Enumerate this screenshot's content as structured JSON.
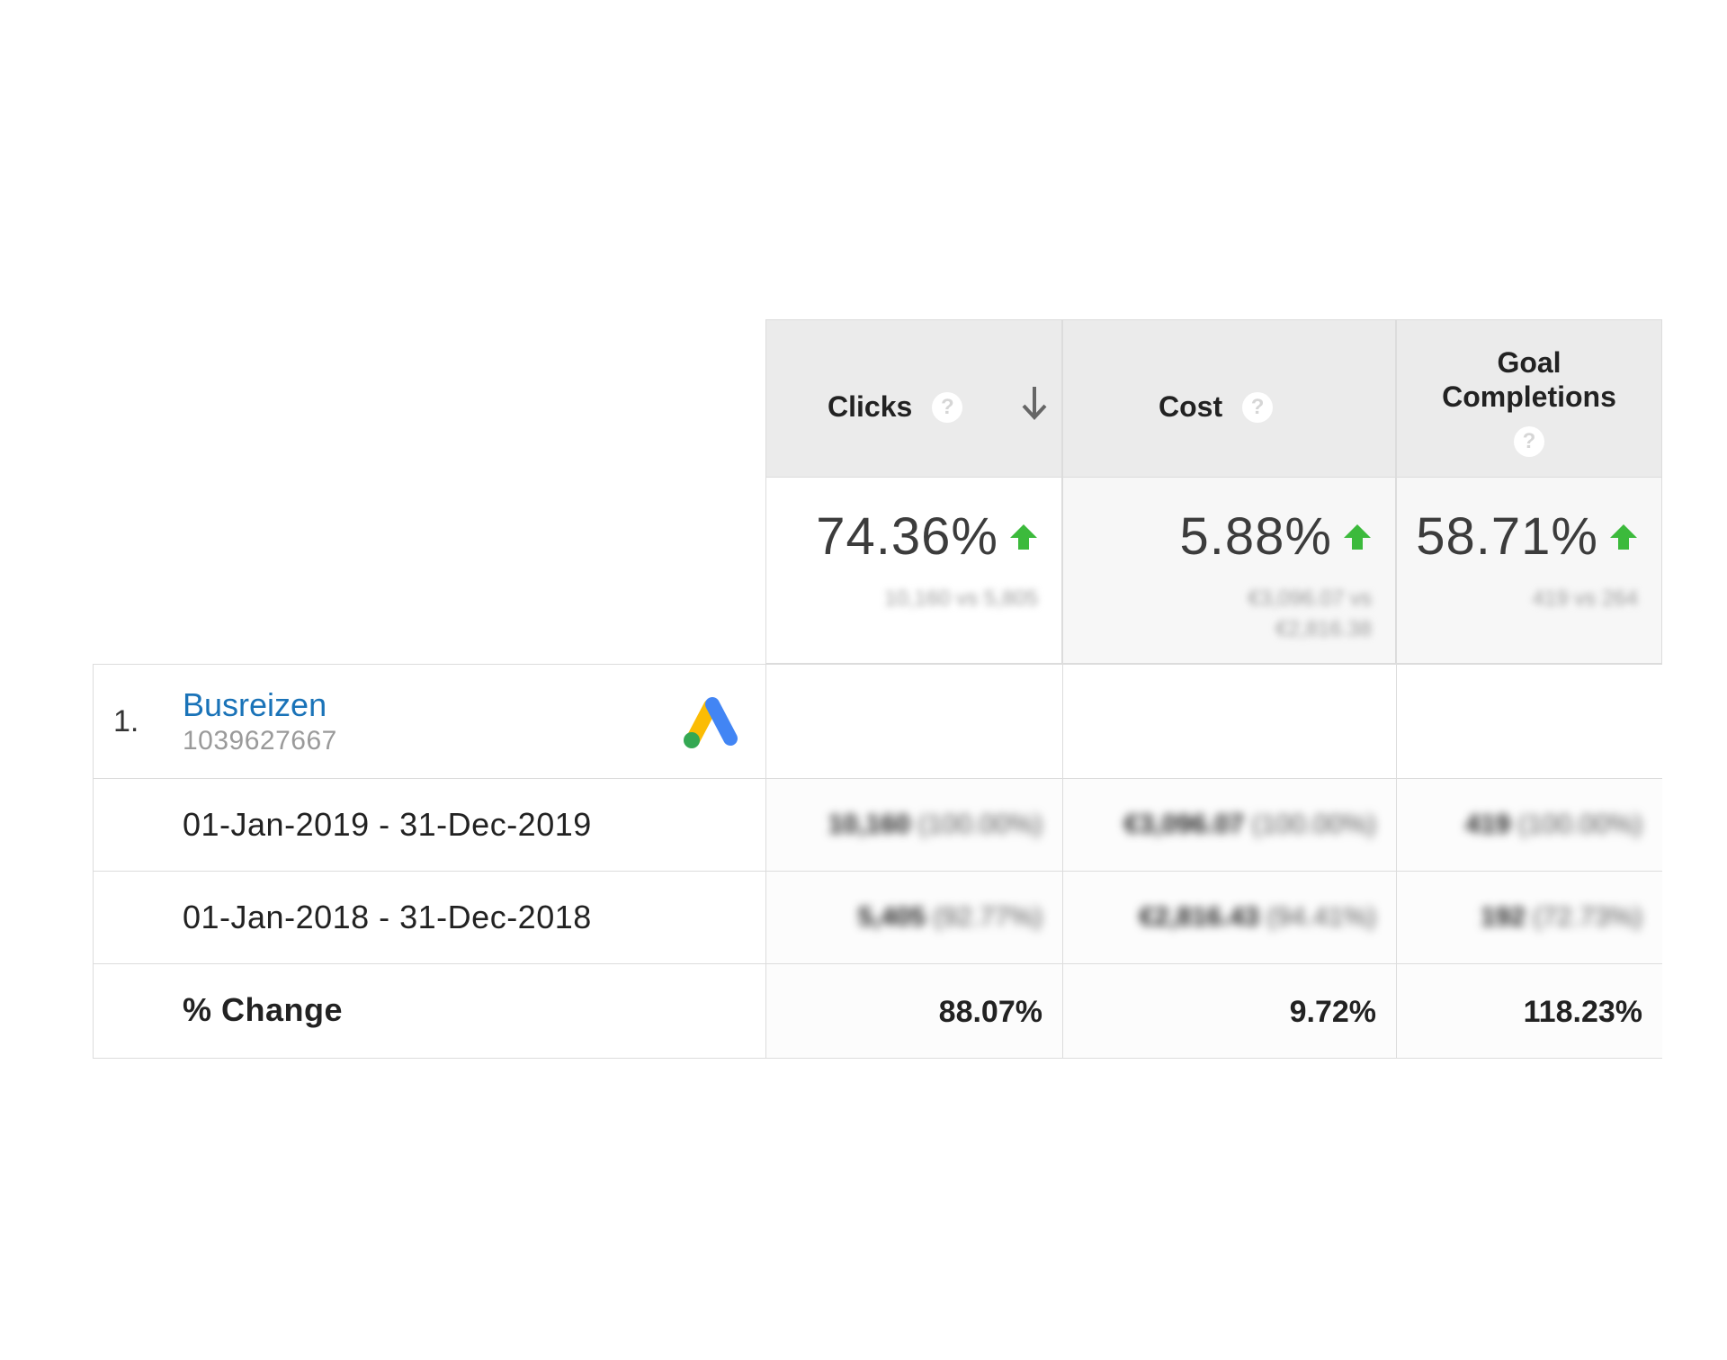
{
  "header": {
    "clicks_label": "Clicks",
    "cost_label": "Cost",
    "goal_label_line1": "Goal",
    "goal_label_line2": "Completions",
    "help_glyph": "?"
  },
  "summary": {
    "clicks_pct": "74.36%",
    "cost_pct": "5.88%",
    "goal_pct": "58.71%",
    "clicks_detail": "10,160 vs 5,805",
    "cost_detail_line1": "€3,096.07 vs",
    "cost_detail_line2": "€2,816.38",
    "goal_detail": "419 vs 264",
    "up_color": "#3cba3c"
  },
  "rows": {
    "campaign": {
      "index": "1.",
      "name": "Busreizen",
      "id": "1039627667"
    },
    "period_2019": {
      "label": "01-Jan-2019 - 31-Dec-2019",
      "clicks": "10,160",
      "clicks_share": "(100.00%)",
      "cost": "€3,096.07",
      "cost_share": "(100.00%)",
      "goal": "419",
      "goal_share": "(100.00%)"
    },
    "period_2018": {
      "label": "01-Jan-2018 - 31-Dec-2018",
      "clicks": "5,405",
      "clicks_share": "(92.77%)",
      "cost": "€2,816.43",
      "cost_share": "(94.41%)",
      "goal": "192",
      "goal_share": "(72.73%)"
    },
    "change": {
      "label": "% Change",
      "clicks": "88.07%",
      "cost": "9.72%",
      "goal": "118.23%"
    }
  },
  "colors": {
    "link": "#1a73b8",
    "header_bg": "#ebebeb",
    "ads_blue": "#4285f4",
    "ads_yellow": "#fbbc04",
    "ads_green": "#34a853"
  }
}
